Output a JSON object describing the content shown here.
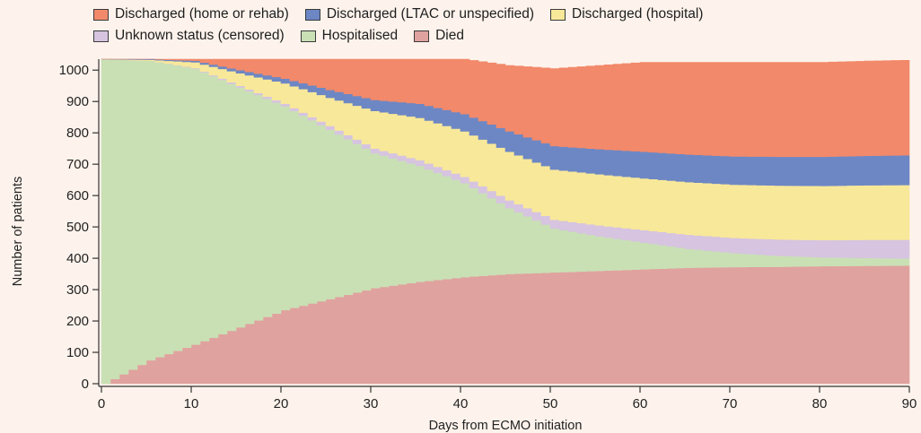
{
  "chart_data": {
    "type": "area",
    "stacked": true,
    "step": true,
    "xlabel": "Days from ECMO initiation",
    "ylabel": "Number of patients",
    "xlim": [
      0,
      90
    ],
    "ylim": [
      0,
      1035
    ],
    "xticks": [
      0,
      10,
      20,
      30,
      40,
      50,
      60,
      70,
      80,
      90
    ],
    "yticks": [
      0,
      100,
      200,
      300,
      400,
      500,
      600,
      700,
      800,
      900,
      1000
    ],
    "grid": false,
    "legend_position": "top",
    "x": [
      0,
      5,
      10,
      15,
      20,
      25,
      30,
      35,
      40,
      45,
      50,
      55,
      60,
      65,
      70,
      75,
      80,
      85,
      90
    ],
    "series": [
      {
        "name": "Died",
        "color": "#e0a29e",
        "values": [
          0,
          75,
          125,
          180,
          235,
          270,
          305,
          325,
          340,
          350,
          355,
          360,
          365,
          370,
          372,
          373,
          375,
          376,
          377
        ]
      },
      {
        "name": "Hospitalised",
        "color": "#c9e0b5",
        "values": [
          1035,
          955,
          880,
          765,
          650,
          540,
          430,
          370,
          300,
          210,
          140,
          110,
          85,
          60,
          45,
          35,
          28,
          25,
          22
        ]
      },
      {
        "name": "Unknown status (censored)",
        "color": "#d6c4e0",
        "values": [
          0,
          0,
          2,
          5,
          8,
          12,
          15,
          18,
          20,
          25,
          28,
          35,
          40,
          45,
          48,
          52,
          55,
          58,
          60
        ]
      },
      {
        "name": "Discharged (hospital)",
        "color": "#f8e89a",
        "values": [
          0,
          3,
          18,
          40,
          65,
          90,
          120,
          135,
          145,
          155,
          160,
          163,
          165,
          168,
          170,
          172,
          173,
          174,
          175
        ]
      },
      {
        "name": "Discharged (LTAC or unspecified)",
        "color": "#6d87c4",
        "values": [
          0,
          2,
          5,
          10,
          15,
          25,
          35,
          45,
          55,
          65,
          75,
          80,
          85,
          88,
          90,
          92,
          93,
          94,
          95
        ]
      },
      {
        "name": "Discharged (home or rehab)",
        "color": "#f2896a",
        "values": [
          0,
          0,
          5,
          35,
          62,
          98,
          130,
          142,
          175,
          210,
          247,
          267,
          285,
          294,
          300,
          301,
          301,
          302,
          303
        ]
      }
    ]
  },
  "legend": {
    "rows": [
      [
        {
          "label": "Discharged (home or rehab)",
          "color": "#f2896a"
        },
        {
          "label": "Discharged (LTAC or unspecified)",
          "color": "#6d87c4"
        },
        {
          "label": "Discharged (hospital)",
          "color": "#f8e89a"
        }
      ],
      [
        {
          "label": "Unknown status (censored)",
          "color": "#d6c4e0"
        },
        {
          "label": "Hospitalised",
          "color": "#c9e0b5"
        },
        {
          "label": "Died",
          "color": "#e0a29e"
        }
      ]
    ]
  }
}
